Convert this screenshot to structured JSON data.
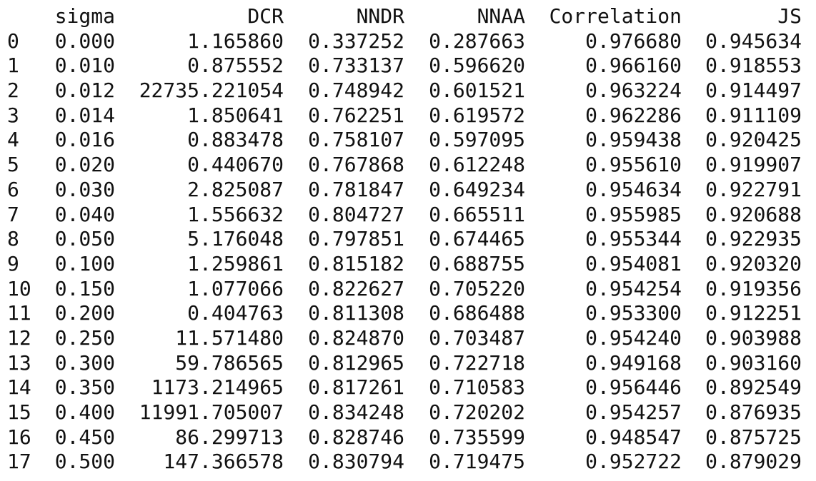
{
  "table": {
    "columns": [
      "sigma",
      "DCR",
      "NNDR",
      "NNAA",
      "Correlation",
      "JS"
    ],
    "rows": [
      {
        "index": "0",
        "sigma": "0.000",
        "DCR": "1.165860",
        "NNDR": "0.337252",
        "NNAA": "0.287663",
        "Correlation": "0.976680",
        "JS": "0.945634"
      },
      {
        "index": "1",
        "sigma": "0.010",
        "DCR": "0.875552",
        "NNDR": "0.733137",
        "NNAA": "0.596620",
        "Correlation": "0.966160",
        "JS": "0.918553"
      },
      {
        "index": "2",
        "sigma": "0.012",
        "DCR": "22735.221054",
        "NNDR": "0.748942",
        "NNAA": "0.601521",
        "Correlation": "0.963224",
        "JS": "0.914497"
      },
      {
        "index": "3",
        "sigma": "0.014",
        "DCR": "1.850641",
        "NNDR": "0.762251",
        "NNAA": "0.619572",
        "Correlation": "0.962286",
        "JS": "0.911109"
      },
      {
        "index": "4",
        "sigma": "0.016",
        "DCR": "0.883478",
        "NNDR": "0.758107",
        "NNAA": "0.597095",
        "Correlation": "0.959438",
        "JS": "0.920425"
      },
      {
        "index": "5",
        "sigma": "0.020",
        "DCR": "0.440670",
        "NNDR": "0.767868",
        "NNAA": "0.612248",
        "Correlation": "0.955610",
        "JS": "0.919907"
      },
      {
        "index": "6",
        "sigma": "0.030",
        "DCR": "2.825087",
        "NNDR": "0.781847",
        "NNAA": "0.649234",
        "Correlation": "0.954634",
        "JS": "0.922791"
      },
      {
        "index": "7",
        "sigma": "0.040",
        "DCR": "1.556632",
        "NNDR": "0.804727",
        "NNAA": "0.665511",
        "Correlation": "0.955985",
        "JS": "0.920688"
      },
      {
        "index": "8",
        "sigma": "0.050",
        "DCR": "5.176048",
        "NNDR": "0.797851",
        "NNAA": "0.674465",
        "Correlation": "0.955344",
        "JS": "0.922935"
      },
      {
        "index": "9",
        "sigma": "0.100",
        "DCR": "1.259861",
        "NNDR": "0.815182",
        "NNAA": "0.688755",
        "Correlation": "0.954081",
        "JS": "0.920320"
      },
      {
        "index": "10",
        "sigma": "0.150",
        "DCR": "1.077066",
        "NNDR": "0.822627",
        "NNAA": "0.705220",
        "Correlation": "0.954254",
        "JS": "0.919356"
      },
      {
        "index": "11",
        "sigma": "0.200",
        "DCR": "0.404763",
        "NNDR": "0.811308",
        "NNAA": "0.686488",
        "Correlation": "0.953300",
        "JS": "0.912251"
      },
      {
        "index": "12",
        "sigma": "0.250",
        "DCR": "11.571480",
        "NNDR": "0.824870",
        "NNAA": "0.703487",
        "Correlation": "0.954240",
        "JS": "0.903988"
      },
      {
        "index": "13",
        "sigma": "0.300",
        "DCR": "59.786565",
        "NNDR": "0.812965",
        "NNAA": "0.722718",
        "Correlation": "0.949168",
        "JS": "0.903160"
      },
      {
        "index": "14",
        "sigma": "0.350",
        "DCR": "1173.214965",
        "NNDR": "0.817261",
        "NNAA": "0.710583",
        "Correlation": "0.956446",
        "JS": "0.892549"
      },
      {
        "index": "15",
        "sigma": "0.400",
        "DCR": "11991.705007",
        "NNDR": "0.834248",
        "NNAA": "0.720202",
        "Correlation": "0.954257",
        "JS": "0.876935"
      },
      {
        "index": "16",
        "sigma": "0.450",
        "DCR": "86.299713",
        "NNDR": "0.828746",
        "NNAA": "0.735599",
        "Correlation": "0.948547",
        "JS": "0.875725"
      },
      {
        "index": "17",
        "sigma": "0.500",
        "DCR": "147.366578",
        "NNDR": "0.830794",
        "NNAA": "0.719475",
        "Correlation": "0.952722",
        "JS": "0.879029"
      }
    ]
  }
}
